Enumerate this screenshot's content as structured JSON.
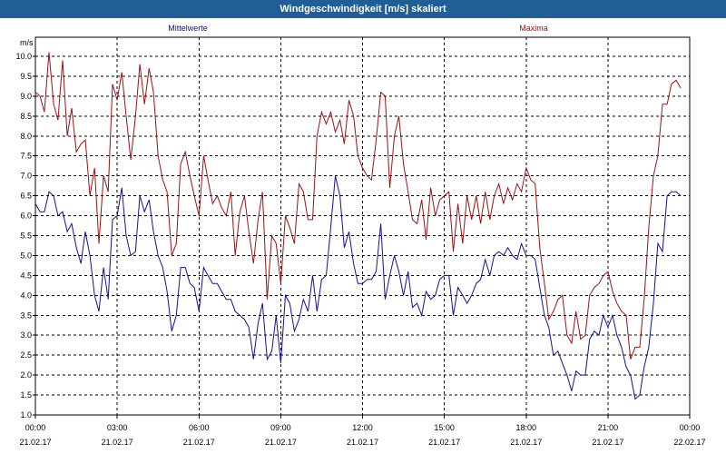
{
  "window": {
    "title": "Windgeschwindigkeit [m/s] skaliert"
  },
  "chart_data": {
    "type": "line",
    "title": "Windgeschwindigkeit [m/s] skaliert",
    "ylabel": "m/s",
    "xlabel": "",
    "ylim": [
      1.0,
      10.0
    ],
    "xlim_hours": [
      0,
      24
    ],
    "grid": true,
    "y_ticks": [
      "1.0",
      "1.5",
      "2.0",
      "2.5",
      "3.0",
      "3.5",
      "4.0",
      "4.5",
      "5.0",
      "5.5",
      "6.0",
      "6.5",
      "7.0",
      "7.5",
      "8.0",
      "8.5",
      "9.0",
      "9.5",
      "10.0"
    ],
    "x_ticks": [
      {
        "h": 0,
        "time": "00:00",
        "date": "21.02.17"
      },
      {
        "h": 3,
        "time": "03:00",
        "date": "21.02.17"
      },
      {
        "h": 6,
        "time": "06:00",
        "date": "21.02.17"
      },
      {
        "h": 9,
        "time": "09:00",
        "date": "21.02.17"
      },
      {
        "h": 12,
        "time": "12:00",
        "date": "21.02.17"
      },
      {
        "h": 15,
        "time": "15:00",
        "date": "21.02.17"
      },
      {
        "h": 18,
        "time": "18:00",
        "date": "21.02.17"
      },
      {
        "h": 21,
        "time": "21:00",
        "date": "21.02.17"
      },
      {
        "h": 24,
        "time": "00:00",
        "date": "22.02.17"
      }
    ],
    "series": [
      {
        "name": "Mittelwerte",
        "color": "#1010a0",
        "points": [
          [
            0.0,
            6.3
          ],
          [
            0.17,
            6.1
          ],
          [
            0.33,
            6.1
          ],
          [
            0.5,
            6.6
          ],
          [
            0.67,
            6.5
          ],
          [
            0.83,
            6.0
          ],
          [
            1.0,
            6.1
          ],
          [
            1.17,
            5.6
          ],
          [
            1.33,
            5.8
          ],
          [
            1.5,
            5.2
          ],
          [
            1.67,
            4.8
          ],
          [
            1.83,
            5.6
          ],
          [
            2.0,
            5.0
          ],
          [
            2.17,
            4.0
          ],
          [
            2.33,
            3.6
          ],
          [
            2.5,
            4.7
          ],
          [
            2.67,
            3.9
          ],
          [
            2.83,
            5.9
          ],
          [
            3.0,
            6.0
          ],
          [
            3.17,
            6.7
          ],
          [
            3.33,
            5.5
          ],
          [
            3.5,
            5.0
          ],
          [
            3.67,
            5.1
          ],
          [
            3.83,
            6.5
          ],
          [
            4.0,
            6.1
          ],
          [
            4.17,
            6.4
          ],
          [
            4.33,
            5.6
          ],
          [
            4.5,
            5.0
          ],
          [
            4.67,
            4.7
          ],
          [
            4.83,
            4.1
          ],
          [
            5.0,
            3.1
          ],
          [
            5.17,
            3.5
          ],
          [
            5.33,
            4.7
          ],
          [
            5.5,
            4.7
          ],
          [
            5.67,
            4.3
          ],
          [
            5.83,
            4.2
          ],
          [
            6.0,
            3.6
          ],
          [
            6.17,
            4.7
          ],
          [
            6.33,
            4.5
          ],
          [
            6.5,
            4.3
          ],
          [
            6.67,
            4.3
          ],
          [
            6.83,
            4.1
          ],
          [
            7.0,
            3.9
          ],
          [
            7.17,
            3.9
          ],
          [
            7.33,
            3.6
          ],
          [
            7.5,
            3.5
          ],
          [
            7.67,
            3.4
          ],
          [
            7.83,
            3.2
          ],
          [
            8.0,
            2.4
          ],
          [
            8.17,
            3.3
          ],
          [
            8.33,
            3.8
          ],
          [
            8.5,
            2.4
          ],
          [
            8.67,
            2.6
          ],
          [
            8.83,
            3.5
          ],
          [
            9.0,
            2.3
          ],
          [
            9.17,
            4.0
          ],
          [
            9.33,
            3.8
          ],
          [
            9.5,
            3.1
          ],
          [
            9.67,
            3.4
          ],
          [
            9.83,
            3.9
          ],
          [
            10.0,
            3.6
          ],
          [
            10.17,
            4.5
          ],
          [
            10.33,
            3.6
          ],
          [
            10.5,
            4.4
          ],
          [
            10.67,
            4.5
          ],
          [
            10.83,
            5.7
          ],
          [
            11.0,
            7.0
          ],
          [
            11.17,
            6.5
          ],
          [
            11.33,
            5.2
          ],
          [
            11.5,
            5.6
          ],
          [
            11.67,
            4.8
          ],
          [
            11.83,
            4.3
          ],
          [
            12.0,
            4.3
          ],
          [
            12.17,
            4.4
          ],
          [
            12.33,
            4.4
          ],
          [
            12.5,
            4.6
          ],
          [
            12.67,
            5.8
          ],
          [
            12.83,
            3.9
          ],
          [
            13.0,
            4.5
          ],
          [
            13.17,
            5.0
          ],
          [
            13.33,
            4.6
          ],
          [
            13.5,
            4.0
          ],
          [
            13.67,
            4.6
          ],
          [
            13.83,
            3.7
          ],
          [
            14.0,
            3.8
          ],
          [
            14.17,
            3.5
          ],
          [
            14.33,
            4.1
          ],
          [
            14.5,
            3.9
          ],
          [
            14.67,
            4.0
          ],
          [
            14.83,
            4.4
          ],
          [
            15.0,
            4.5
          ],
          [
            15.17,
            4.5
          ],
          [
            15.33,
            3.5
          ],
          [
            15.5,
            4.2
          ],
          [
            15.67,
            4.0
          ],
          [
            15.83,
            3.8
          ],
          [
            16.0,
            4.0
          ],
          [
            16.17,
            4.3
          ],
          [
            16.33,
            4.4
          ],
          [
            16.5,
            4.9
          ],
          [
            16.67,
            4.5
          ],
          [
            16.83,
            5.0
          ],
          [
            17.0,
            5.1
          ],
          [
            17.17,
            5.0
          ],
          [
            17.33,
            5.2
          ],
          [
            17.5,
            5.0
          ],
          [
            17.67,
            4.9
          ],
          [
            17.83,
            5.3
          ],
          [
            18.0,
            5.0
          ],
          [
            18.17,
            5.0
          ],
          [
            18.33,
            4.9
          ],
          [
            18.5,
            4.2
          ],
          [
            18.67,
            3.5
          ],
          [
            18.83,
            3.2
          ],
          [
            19.0,
            2.5
          ],
          [
            19.17,
            2.6
          ],
          [
            19.33,
            2.3
          ],
          [
            19.5,
            2.0
          ],
          [
            19.67,
            1.6
          ],
          [
            19.83,
            2.1
          ],
          [
            20.0,
            2.0
          ],
          [
            20.17,
            2.0
          ],
          [
            20.33,
            2.9
          ],
          [
            20.5,
            3.1
          ],
          [
            20.67,
            3.0
          ],
          [
            20.83,
            3.5
          ],
          [
            21.0,
            3.2
          ],
          [
            21.17,
            3.5
          ],
          [
            21.33,
            3.0
          ],
          [
            21.5,
            2.7
          ],
          [
            21.67,
            2.2
          ],
          [
            21.83,
            2.0
          ],
          [
            22.0,
            1.4
          ],
          [
            22.17,
            1.5
          ],
          [
            22.33,
            2.2
          ],
          [
            22.5,
            2.7
          ],
          [
            22.67,
            3.8
          ],
          [
            22.83,
            5.3
          ],
          [
            23.0,
            5.1
          ],
          [
            23.17,
            6.5
          ],
          [
            23.33,
            6.6
          ],
          [
            23.5,
            6.6
          ],
          [
            23.67,
            6.5
          ]
        ]
      },
      {
        "name": "Maxima",
        "color": "#a01010",
        "points": [
          [
            0.0,
            9.1
          ],
          [
            0.17,
            9.0
          ],
          [
            0.33,
            8.6
          ],
          [
            0.5,
            10.1
          ],
          [
            0.67,
            8.8
          ],
          [
            0.83,
            8.4
          ],
          [
            1.0,
            9.9
          ],
          [
            1.17,
            8.0
          ],
          [
            1.33,
            8.7
          ],
          [
            1.5,
            7.6
          ],
          [
            1.67,
            7.8
          ],
          [
            1.83,
            7.9
          ],
          [
            2.0,
            6.5
          ],
          [
            2.17,
            7.2
          ],
          [
            2.33,
            5.3
          ],
          [
            2.5,
            7.0
          ],
          [
            2.67,
            6.6
          ],
          [
            2.83,
            9.3
          ],
          [
            3.0,
            8.9
          ],
          [
            3.17,
            9.6
          ],
          [
            3.33,
            8.5
          ],
          [
            3.5,
            7.4
          ],
          [
            3.67,
            8.5
          ],
          [
            3.83,
            9.8
          ],
          [
            4.0,
            8.8
          ],
          [
            4.17,
            9.7
          ],
          [
            4.33,
            9.1
          ],
          [
            4.5,
            7.5
          ],
          [
            4.67,
            6.9
          ],
          [
            4.83,
            6.6
          ],
          [
            5.0,
            5.0
          ],
          [
            5.17,
            5.3
          ],
          [
            5.33,
            7.3
          ],
          [
            5.5,
            7.6
          ],
          [
            5.67,
            7.0
          ],
          [
            5.83,
            6.5
          ],
          [
            6.0,
            6.0
          ],
          [
            6.17,
            7.5
          ],
          [
            6.33,
            6.9
          ],
          [
            6.5,
            6.3
          ],
          [
            6.67,
            6.5
          ],
          [
            6.83,
            6.2
          ],
          [
            7.0,
            6.0
          ],
          [
            7.17,
            6.6
          ],
          [
            7.33,
            5.0
          ],
          [
            7.5,
            6.1
          ],
          [
            7.67,
            6.5
          ],
          [
            7.83,
            5.6
          ],
          [
            8.0,
            4.8
          ],
          [
            8.17,
            5.9
          ],
          [
            8.33,
            6.6
          ],
          [
            8.5,
            3.9
          ],
          [
            8.67,
            5.5
          ],
          [
            8.83,
            5.3
          ],
          [
            9.0,
            4.3
          ],
          [
            9.17,
            6.0
          ],
          [
            9.33,
            5.7
          ],
          [
            9.5,
            5.3
          ],
          [
            9.67,
            6.8
          ],
          [
            9.83,
            6.6
          ],
          [
            10.0,
            5.9
          ],
          [
            10.17,
            5.9
          ],
          [
            10.33,
            8.0
          ],
          [
            10.5,
            8.6
          ],
          [
            10.67,
            8.3
          ],
          [
            10.83,
            8.6
          ],
          [
            11.0,
            8.1
          ],
          [
            11.17,
            8.4
          ],
          [
            11.33,
            7.8
          ],
          [
            11.5,
            8.9
          ],
          [
            11.67,
            8.5
          ],
          [
            11.83,
            7.5
          ],
          [
            12.0,
            7.2
          ],
          [
            12.17,
            7.0
          ],
          [
            12.33,
            6.9
          ],
          [
            12.5,
            7.9
          ],
          [
            12.67,
            9.1
          ],
          [
            12.83,
            9.0
          ],
          [
            13.0,
            6.7
          ],
          [
            13.17,
            8.0
          ],
          [
            13.33,
            8.5
          ],
          [
            13.5,
            7.3
          ],
          [
            13.67,
            6.6
          ],
          [
            13.83,
            5.9
          ],
          [
            14.0,
            5.8
          ],
          [
            14.17,
            6.4
          ],
          [
            14.33,
            5.4
          ],
          [
            14.5,
            6.7
          ],
          [
            14.67,
            6.0
          ],
          [
            14.83,
            6.4
          ],
          [
            15.0,
            6.5
          ],
          [
            15.17,
            6.6
          ],
          [
            15.33,
            5.1
          ],
          [
            15.5,
            6.3
          ],
          [
            15.67,
            5.3
          ],
          [
            15.83,
            6.5
          ],
          [
            16.0,
            5.9
          ],
          [
            16.17,
            6.5
          ],
          [
            16.33,
            5.8
          ],
          [
            16.5,
            6.6
          ],
          [
            16.67,
            5.9
          ],
          [
            16.83,
            6.5
          ],
          [
            17.0,
            6.8
          ],
          [
            17.17,
            6.3
          ],
          [
            17.33,
            6.7
          ],
          [
            17.5,
            6.4
          ],
          [
            17.67,
            6.8
          ],
          [
            17.83,
            6.6
          ],
          [
            18.0,
            7.2
          ],
          [
            18.17,
            6.9
          ],
          [
            18.33,
            6.8
          ],
          [
            18.5,
            5.2
          ],
          [
            18.67,
            4.3
          ],
          [
            18.83,
            3.4
          ],
          [
            19.0,
            3.6
          ],
          [
            19.17,
            3.9
          ],
          [
            19.33,
            4.0
          ],
          [
            19.5,
            3.0
          ],
          [
            19.67,
            2.8
          ],
          [
            19.83,
            3.6
          ],
          [
            20.0,
            2.9
          ],
          [
            20.17,
            3.0
          ],
          [
            20.33,
            4.0
          ],
          [
            20.5,
            4.2
          ],
          [
            20.67,
            4.3
          ],
          [
            20.83,
            4.5
          ],
          [
            21.0,
            4.6
          ],
          [
            21.17,
            4.1
          ],
          [
            21.33,
            3.8
          ],
          [
            21.5,
            3.6
          ],
          [
            21.67,
            3.5
          ],
          [
            21.83,
            2.4
          ],
          [
            22.0,
            2.7
          ],
          [
            22.17,
            2.7
          ],
          [
            22.33,
            3.9
          ],
          [
            22.5,
            5.7
          ],
          [
            22.67,
            7.0
          ],
          [
            22.83,
            7.5
          ],
          [
            23.0,
            8.8
          ],
          [
            23.17,
            8.8
          ],
          [
            23.33,
            9.3
          ],
          [
            23.5,
            9.4
          ],
          [
            23.67,
            9.2
          ]
        ]
      }
    ]
  }
}
